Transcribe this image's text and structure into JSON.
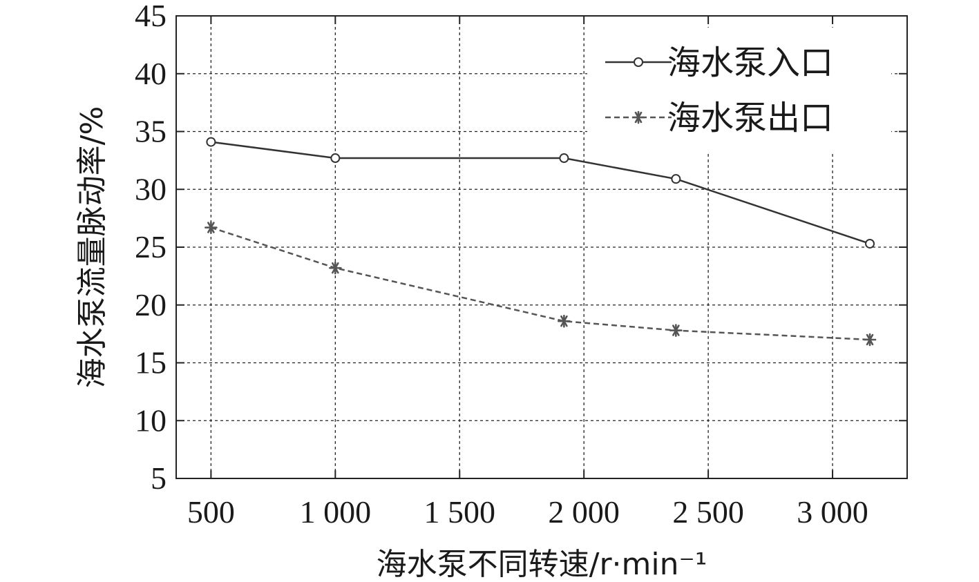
{
  "chart_data": {
    "type": "line",
    "xlabel": "海水泵不同转速/r·min⁻¹",
    "ylabel": "海水泵流量脉动率/%",
    "xlim": [
      360,
      3300
    ],
    "ylim": [
      5,
      45
    ],
    "xticks": [
      500,
      1000,
      1500,
      2000,
      2500,
      3000
    ],
    "xtick_labels": [
      "500",
      "1 000",
      "1 500",
      "2 000",
      "2 500",
      "3 000"
    ],
    "yticks": [
      5,
      10,
      15,
      20,
      25,
      30,
      35,
      40,
      45
    ],
    "ytick_labels": [
      "5",
      "10",
      "15",
      "20",
      "25",
      "30",
      "35",
      "40",
      "45"
    ],
    "grid": true,
    "legend_position": "top-right",
    "series": [
      {
        "name": "海水泵入口",
        "x": [
          500,
          1000,
          1920,
          2370,
          3150
        ],
        "y": [
          34.1,
          32.7,
          32.7,
          30.9,
          25.3
        ],
        "color": "#333333",
        "line_style": "solid",
        "marker": "circle"
      },
      {
        "name": "海水泵出口",
        "x": [
          500,
          1000,
          1920,
          2370,
          3150
        ],
        "y": [
          26.7,
          23.2,
          18.6,
          17.8,
          17.0
        ],
        "color": "#555555",
        "line_style": "dashed",
        "marker": "asterisk"
      }
    ]
  }
}
